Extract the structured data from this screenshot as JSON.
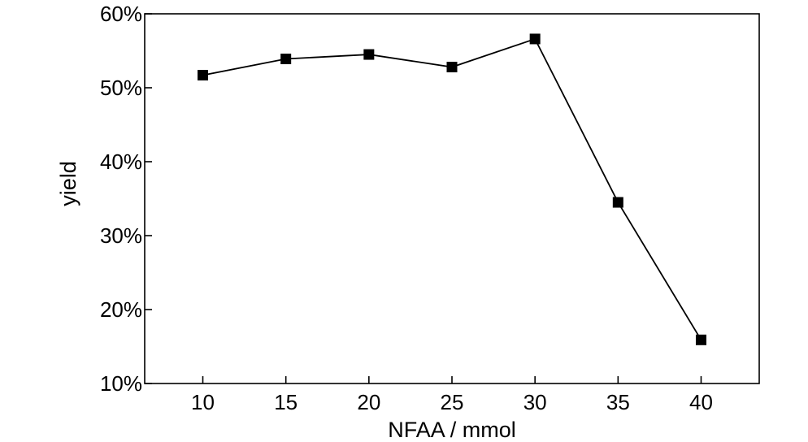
{
  "chart_data": {
    "type": "line",
    "title": "",
    "xlabel": "NFAA / mmol",
    "ylabel": "yield",
    "x": [
      10,
      15,
      20,
      25,
      30,
      35,
      40
    ],
    "series": [
      {
        "values": [
          51.7,
          53.9,
          54.5,
          52.8,
          56.6,
          34.5,
          15.9
        ]
      }
    ],
    "xlim": [
      6.5,
      43.5
    ],
    "ylim": [
      10,
      60
    ],
    "x_ticks": [
      "10",
      "15",
      "20",
      "25",
      "30",
      "35",
      "40"
    ],
    "y_ticks": [
      "10%",
      "20%",
      "30%",
      "40%",
      "50%",
      "60%"
    ],
    "grid": false,
    "legend": "none",
    "marker": "square",
    "colors": {
      "line": "#000000",
      "marker": "#000000"
    }
  }
}
